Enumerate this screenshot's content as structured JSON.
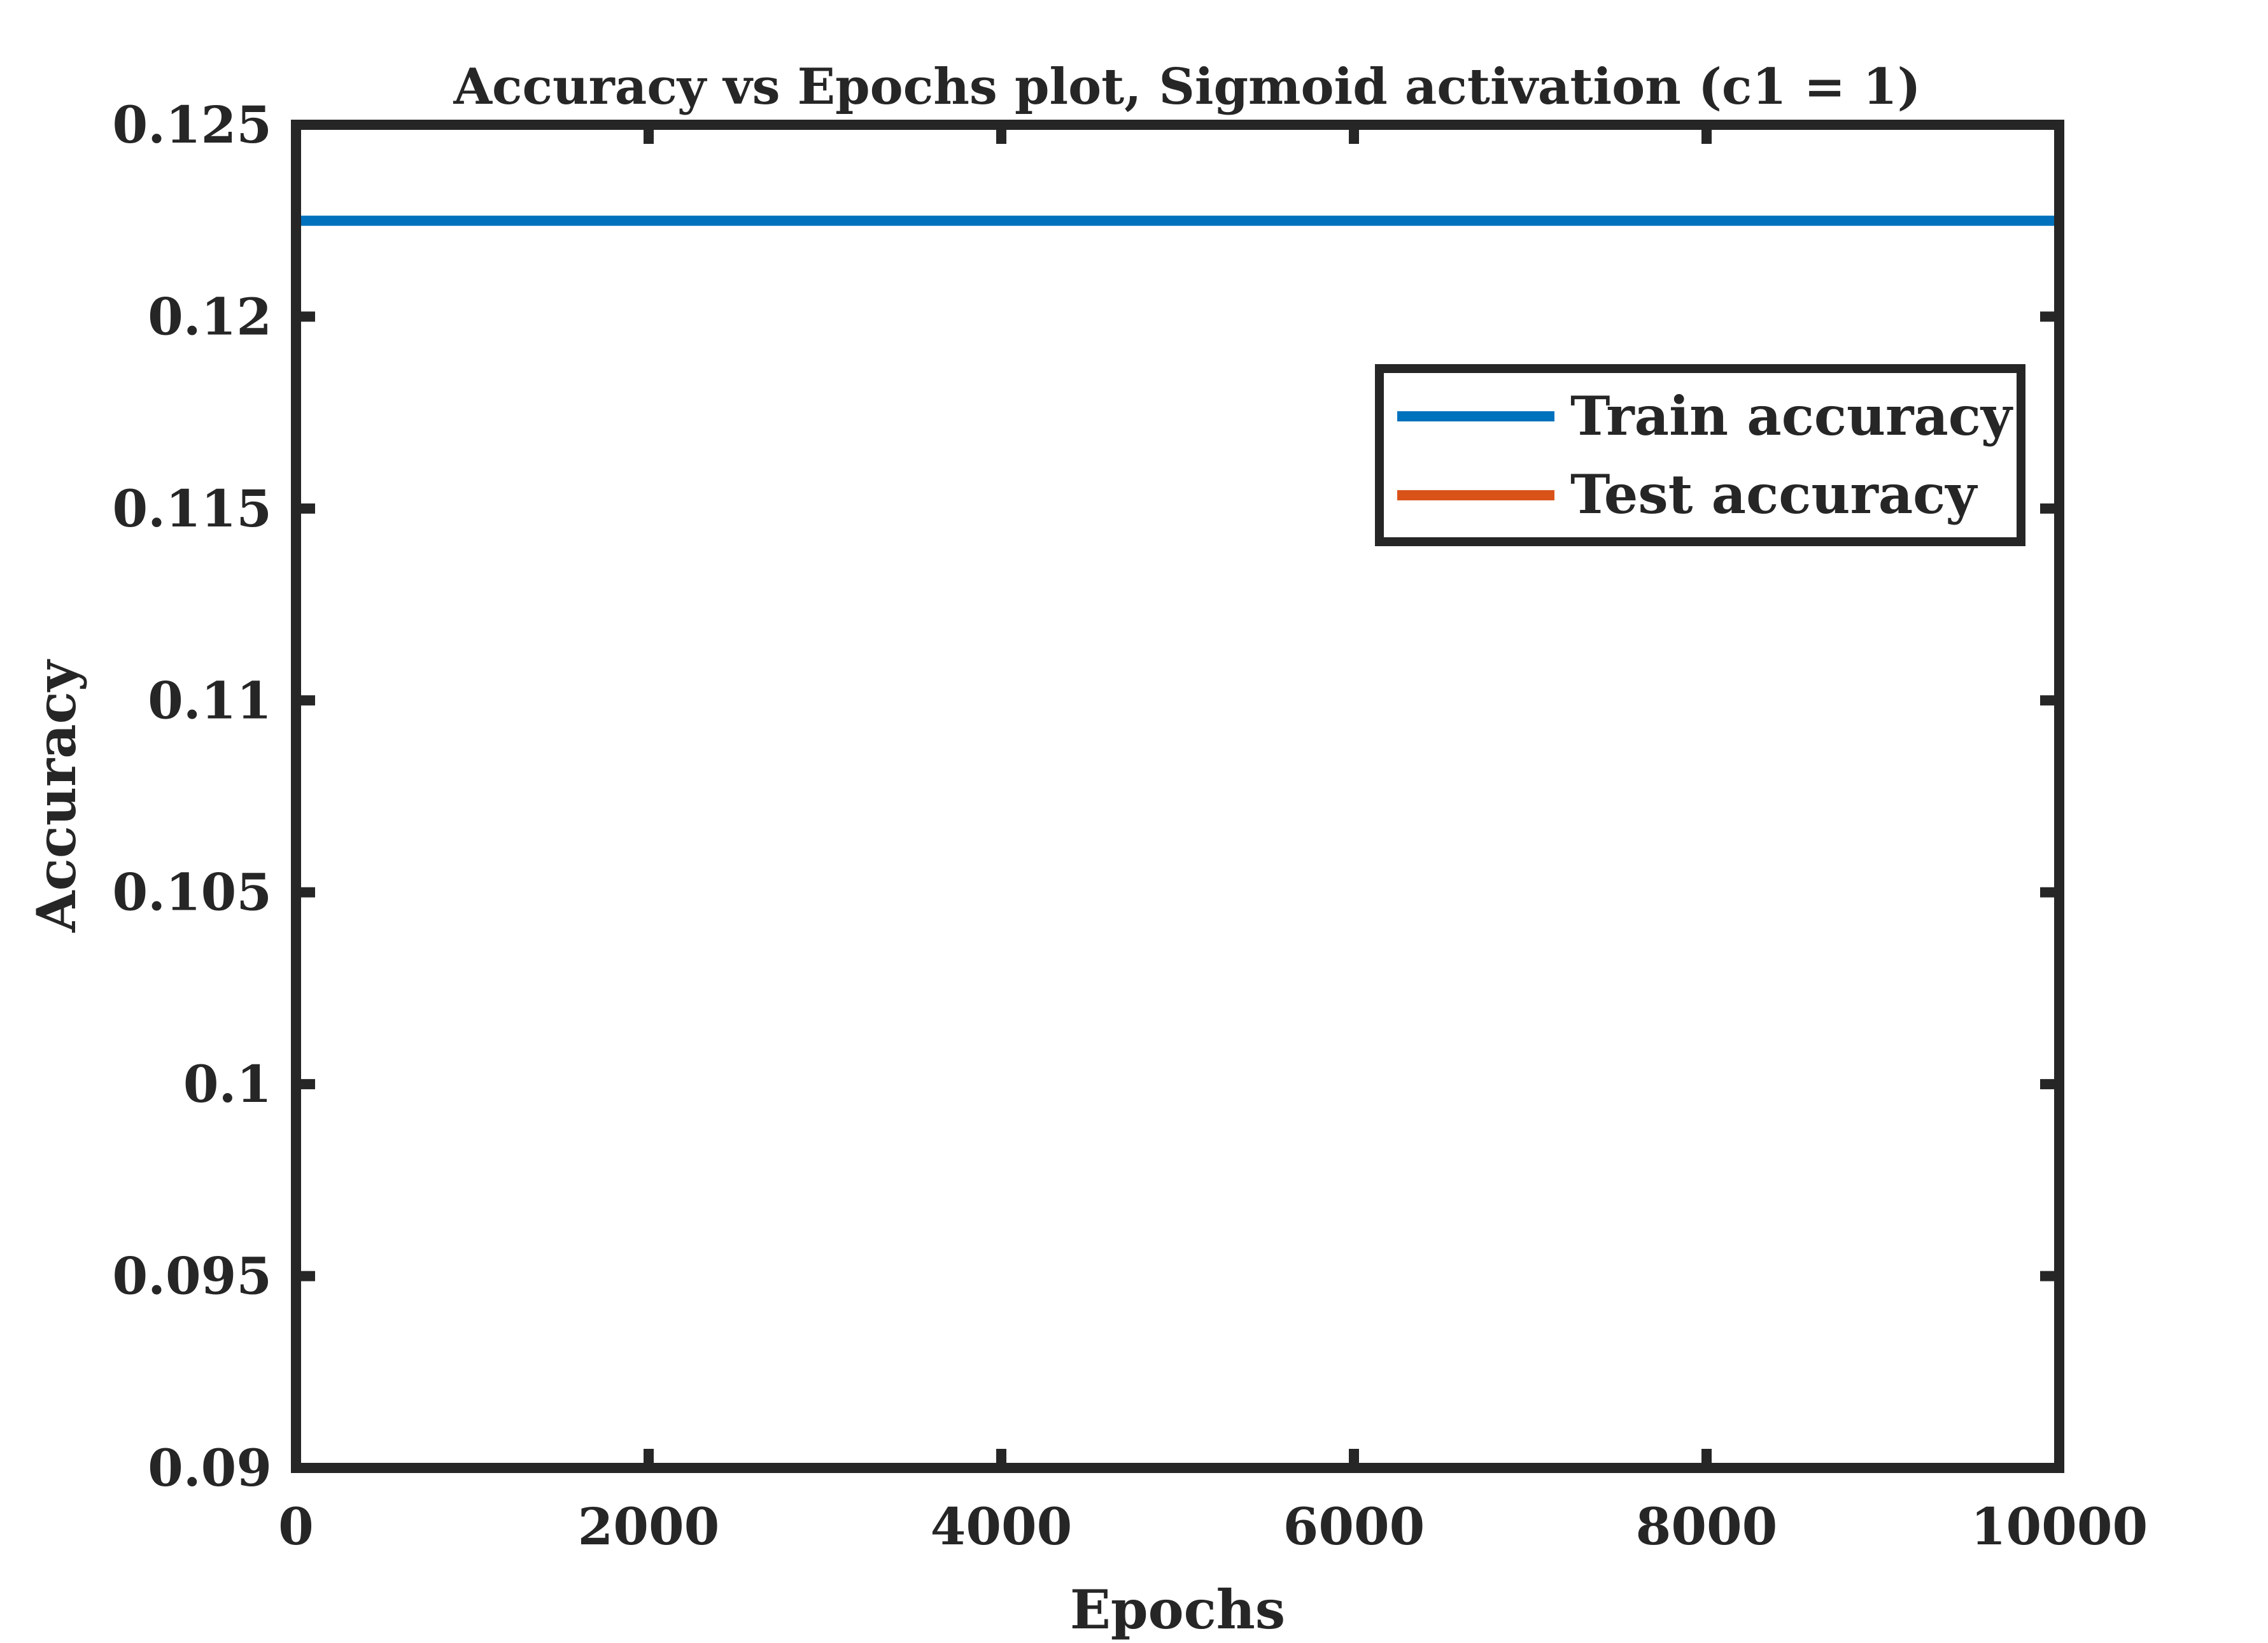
{
  "chart_data": {
    "type": "line",
    "title": "Accuracy vs Epochs plot, Sigmoid activation (c1 = 1)",
    "xlabel": "Epochs",
    "ylabel": "Accuracy",
    "xlim": [
      0,
      10000
    ],
    "ylim": [
      0.09,
      0.125
    ],
    "x_ticks": [
      0,
      2000,
      4000,
      6000,
      8000,
      10000
    ],
    "x_tick_labels": [
      "0",
      "2000",
      "4000",
      "6000",
      "8000",
      "10000"
    ],
    "y_ticks": [
      0.09,
      0.095,
      0.1,
      0.105,
      0.11,
      0.115,
      0.12,
      0.125
    ],
    "y_tick_labels": [
      "0.09",
      "0.095",
      "0.1",
      "0.105",
      "0.11",
      "0.115",
      "0.12",
      "0.125"
    ],
    "grid": false,
    "legend_position": "top-right",
    "series": [
      {
        "name": "Train accuracy",
        "color": "#0072BD",
        "x": [
          0,
          10000
        ],
        "y": [
          0.1225,
          0.1225
        ]
      },
      {
        "name": "Test accuracy",
        "color": "#D95319",
        "x": [
          0,
          10000
        ],
        "y": [
          0.09,
          0.09
        ]
      }
    ]
  }
}
